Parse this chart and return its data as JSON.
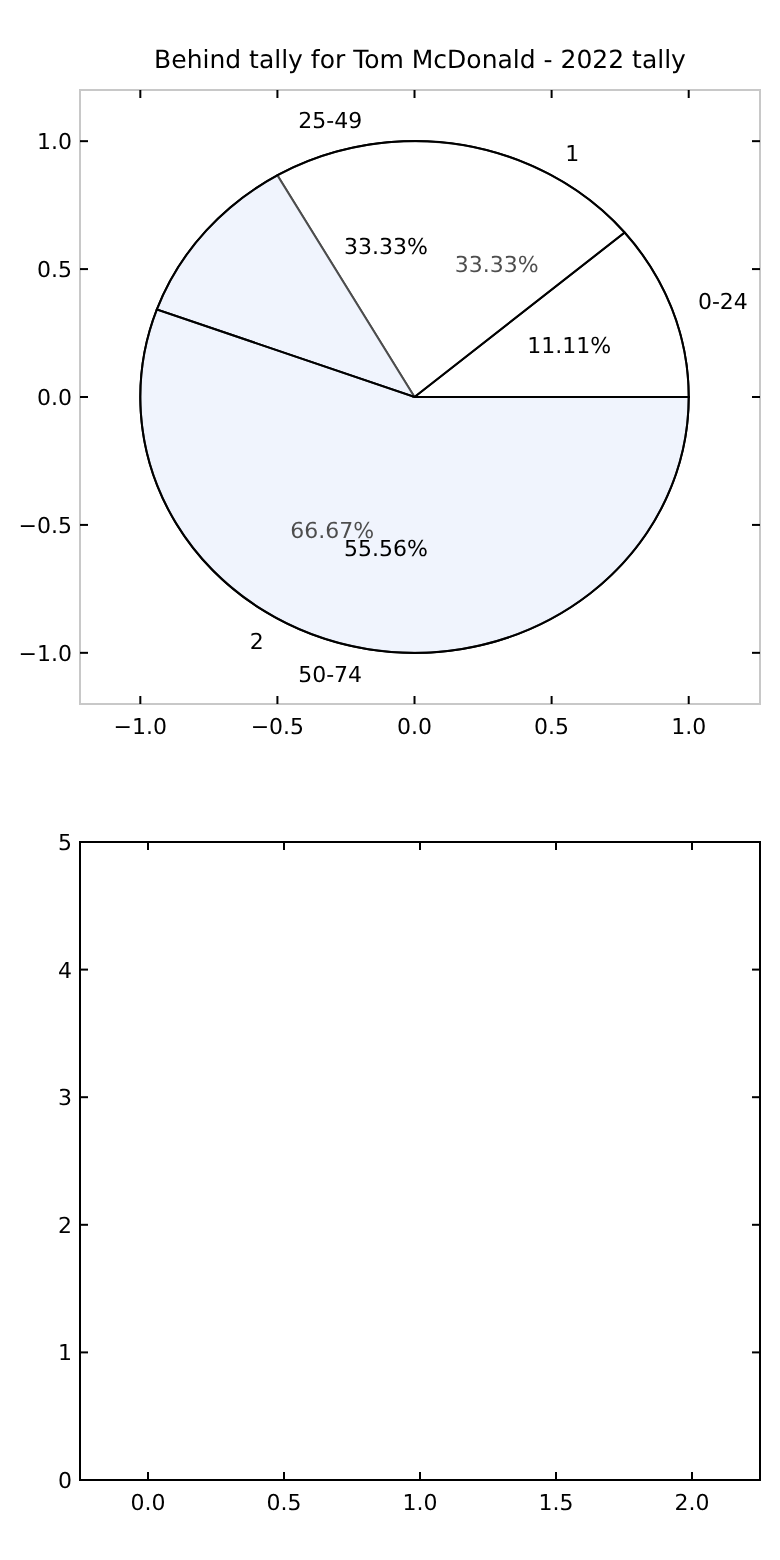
{
  "chart_data": [
    {
      "type": "pie",
      "title": "Behind tally for Tom McDonald - 2022 tally",
      "categories": [
        "1",
        "2"
      ],
      "values": [
        33.33,
        66.67
      ],
      "colors": [
        "#ffffff",
        "#eaf0fd"
      ],
      "value_labels": [
        "33.33%",
        "66.67%"
      ]
    },
    {
      "type": "pie",
      "categories": [
        "0-24",
        "25-49",
        "50-74"
      ],
      "values": [
        11.11,
        33.33,
        55.56
      ],
      "colors": [
        "#ffffff",
        "#ffffff",
        "#ffffff"
      ],
      "value_labels": [
        "11.11%",
        "33.33%",
        "55.56%"
      ]
    },
    {
      "type": "scatter",
      "xlim": [
        -1.22,
        1.26
      ],
      "ylim": [
        -1.2,
        1.2
      ],
      "xticks": [
        {
          "value": -1,
          "label": "−1.0"
        },
        {
          "value": -0.5,
          "label": "−0.5"
        },
        {
          "value": 0,
          "label": "0.0"
        },
        {
          "value": 0.5,
          "label": "0.5"
        },
        {
          "value": 1,
          "label": "1.0"
        }
      ],
      "yticks": [
        {
          "value": -1,
          "label": "−1.0"
        },
        {
          "value": -0.5,
          "label": "−0.5"
        },
        {
          "value": 0,
          "label": "0.0"
        },
        {
          "value": 0.5,
          "label": "0.5"
        },
        {
          "value": 1,
          "label": "1.0"
        }
      ]
    },
    {
      "type": "scatter",
      "xlim": [
        -0.25,
        2.25
      ],
      "ylim": [
        0,
        5
      ],
      "xticks": [
        {
          "value": 0,
          "label": "0.0"
        },
        {
          "value": 0.5,
          "label": "0.5"
        },
        {
          "value": 1,
          "label": "1.0"
        },
        {
          "value": 1.5,
          "label": "1.5"
        },
        {
          "value": 2,
          "label": "2.0"
        }
      ],
      "yticks": [
        0,
        1,
        2,
        3,
        4,
        5
      ]
    }
  ]
}
